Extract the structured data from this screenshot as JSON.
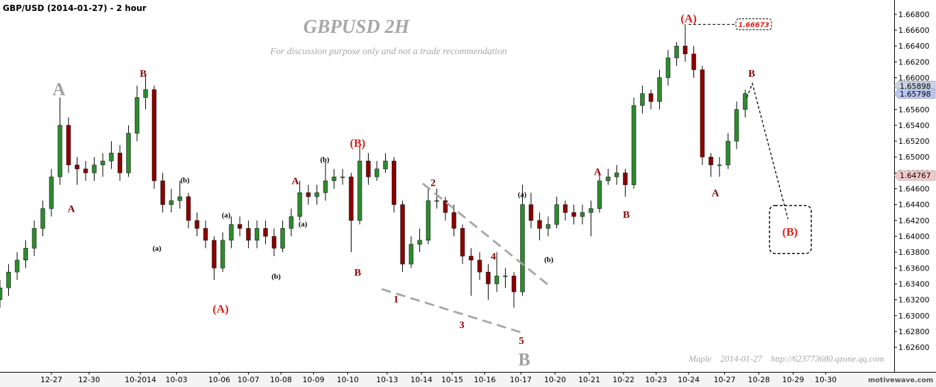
{
  "chart_data": {
    "type": "candlestick",
    "header": "GBP/USD (2014-01-27) - 2 hour",
    "title": "GBPUSD 2H",
    "subtitle": "For discussion purpose only and not a trade recommendation",
    "footer": "Maple    2014-01-27    http://623773680.qzone.qq.com",
    "watermark": "motivewave.com",
    "up_color": "#2e8b2e",
    "down_color": "#8b0000",
    "xlim": [
      -1.5,
      24.6
    ],
    "ylim": [
      1.6229,
      1.6698
    ],
    "xticks": [
      {
        "value": 0,
        "label": "12-27"
      },
      {
        "value": 1.1,
        "label": "12-30"
      },
      {
        "value": 2.6,
        "label": "10-2014"
      },
      {
        "value": 3.65,
        "label": "10-03"
      },
      {
        "value": 4.9,
        "label": "10-06"
      },
      {
        "value": 5.75,
        "label": "10-07"
      },
      {
        "value": 6.7,
        "label": "10-08"
      },
      {
        "value": 7.65,
        "label": "10-09"
      },
      {
        "value": 8.65,
        "label": "10-10"
      },
      {
        "value": 9.8,
        "label": "10-13"
      },
      {
        "value": 10.8,
        "label": "10-14"
      },
      {
        "value": 11.7,
        "label": "10-15"
      },
      {
        "value": 12.65,
        "label": "10-16"
      },
      {
        "value": 13.7,
        "label": "10-17"
      },
      {
        "value": 14.7,
        "label": "10-20"
      },
      {
        "value": 15.7,
        "label": "10-21"
      },
      {
        "value": 16.7,
        "label": "10-22"
      },
      {
        "value": 17.65,
        "label": "10-23"
      },
      {
        "value": 18.6,
        "label": "10-24"
      },
      {
        "value": 19.65,
        "label": "10-27"
      },
      {
        "value": 20.65,
        "label": "10-28"
      },
      {
        "value": 21.65,
        "label": "10-29"
      },
      {
        "value": 22.6,
        "label": "10-30"
      }
    ],
    "yticks": [
      {
        "value": 1.626,
        "label": "1.62600"
      },
      {
        "value": 1.628,
        "label": "1.62800"
      },
      {
        "value": 1.63,
        "label": "1.63000"
      },
      {
        "value": 1.632,
        "label": "1.63200"
      },
      {
        "value": 1.634,
        "label": "1.63400"
      },
      {
        "value": 1.636,
        "label": "1.63600"
      },
      {
        "value": 1.638,
        "label": "1.63800"
      },
      {
        "value": 1.64,
        "label": "1.64000"
      },
      {
        "value": 1.642,
        "label": "1.64200"
      },
      {
        "value": 1.644,
        "label": "1.64400"
      },
      {
        "value": 1.646,
        "label": "1.64600"
      },
      {
        "value": 1.648,
        "label": "1.64800"
      },
      {
        "value": 1.65,
        "label": "1.65000"
      },
      {
        "value": 1.652,
        "label": "1.65200"
      },
      {
        "value": 1.654,
        "label": "1.65400"
      },
      {
        "value": 1.656,
        "label": "1.65600"
      },
      {
        "value": 1.658,
        "label": "1.65800"
      },
      {
        "value": 1.66,
        "label": "1.66000"
      },
      {
        "value": 1.662,
        "label": "1.66200"
      },
      {
        "value": 1.664,
        "label": "1.66400"
      },
      {
        "value": 1.666,
        "label": "1.66600"
      },
      {
        "value": 1.668,
        "label": "1.66800"
      }
    ],
    "x": [
      -1.5,
      -1.25,
      -1,
      -0.75,
      -0.5,
      -0.25,
      0,
      0.25,
      0.5,
      0.75,
      1,
      1.25,
      1.5,
      1.75,
      2,
      2.25,
      2.5,
      2.75,
      3,
      3.25,
      3.5,
      3.75,
      4,
      4.25,
      4.5,
      4.75,
      5,
      5.25,
      5.5,
      5.75,
      6,
      6.25,
      6.5,
      6.75,
      7,
      7.25,
      7.5,
      7.75,
      8,
      8.25,
      8.5,
      8.75,
      9,
      9.25,
      9.5,
      9.75,
      10,
      10.25,
      10.5,
      10.75,
      11,
      11.25,
      11.5,
      11.75,
      12,
      12.25,
      12.5,
      12.75,
      13,
      13.25,
      13.5,
      13.75,
      14,
      14.25,
      14.5,
      14.75,
      15,
      15.25,
      15.5,
      15.75,
      16,
      16.25,
      16.5,
      16.75,
      17,
      17.25,
      17.5,
      17.75,
      18,
      18.25,
      18.5,
      18.75,
      19,
      19.25,
      19.5,
      19.75,
      20,
      20.25
    ],
    "open": [
      1.632,
      1.6335,
      1.6355,
      1.637,
      1.6385,
      1.641,
      1.6435,
      1.6475,
      1.654,
      1.649,
      1.6485,
      1.648,
      1.649,
      1.6495,
      1.6505,
      1.648,
      1.653,
      1.6575,
      1.6585,
      1.647,
      1.644,
      1.6445,
      1.645,
      1.642,
      1.641,
      1.6395,
      1.636,
      1.6395,
      1.6415,
      1.641,
      1.6395,
      1.641,
      1.64,
      1.6385,
      1.641,
      1.6425,
      1.6455,
      1.645,
      1.6455,
      1.647,
      1.6475,
      1.6475,
      1.642,
      1.6495,
      1.6475,
      1.6485,
      1.6495,
      1.644,
      1.6365,
      1.639,
      1.6395,
      1.6445,
      1.6445,
      1.643,
      1.641,
      1.6375,
      1.637,
      1.6355,
      1.634,
      1.635,
      1.635,
      1.633,
      1.644,
      1.642,
      1.641,
      1.6415,
      1.644,
      1.643,
      1.6425,
      1.643,
      1.6435,
      1.647,
      1.6475,
      1.648,
      1.6465,
      1.6565,
      1.658,
      1.657,
      1.66,
      1.6625,
      1.664,
      1.663,
      1.661,
      1.65,
      1.649,
      1.649,
      1.652,
      1.656
    ],
    "high": [
      1.6345,
      1.6365,
      1.638,
      1.6395,
      1.642,
      1.6445,
      1.6485,
      1.6575,
      1.655,
      1.65,
      1.6495,
      1.65,
      1.6505,
      1.652,
      1.6515,
      1.654,
      1.659,
      1.6602,
      1.659,
      1.648,
      1.646,
      1.647,
      1.6455,
      1.643,
      1.642,
      1.64,
      1.6405,
      1.6425,
      1.6425,
      1.642,
      1.642,
      1.642,
      1.641,
      1.642,
      1.6435,
      1.647,
      1.6465,
      1.6465,
      1.6495,
      1.6485,
      1.6485,
      1.648,
      1.6515,
      1.6505,
      1.6495,
      1.6505,
      1.65,
      1.6445,
      1.64,
      1.641,
      1.646,
      1.646,
      1.645,
      1.644,
      1.6415,
      1.6385,
      1.638,
      1.6365,
      1.638,
      1.636,
      1.6355,
      1.6465,
      1.6455,
      1.643,
      1.6425,
      1.645,
      1.6445,
      1.644,
      1.644,
      1.6445,
      1.648,
      1.6485,
      1.649,
      1.6485,
      1.6575,
      1.659,
      1.6585,
      1.661,
      1.6635,
      1.6645,
      1.66673,
      1.664,
      1.6615,
      1.6505,
      1.65,
      1.653,
      1.657,
      1.6585
    ],
    "low": [
      1.631,
      1.6325,
      1.6345,
      1.636,
      1.6375,
      1.64,
      1.6425,
      1.6465,
      1.648,
      1.6465,
      1.647,
      1.647,
      1.6475,
      1.6485,
      1.647,
      1.6475,
      1.652,
      1.656,
      1.646,
      1.643,
      1.643,
      1.6435,
      1.641,
      1.64,
      1.6385,
      1.6345,
      1.6355,
      1.6385,
      1.64,
      1.6385,
      1.6385,
      1.639,
      1.6375,
      1.638,
      1.64,
      1.642,
      1.644,
      1.644,
      1.6445,
      1.646,
      1.6465,
      1.638,
      1.6415,
      1.6465,
      1.647,
      1.648,
      1.643,
      1.6355,
      1.636,
      1.638,
      1.639,
      1.6435,
      1.642,
      1.64,
      1.6365,
      1.6325,
      1.6345,
      1.632,
      1.633,
      1.6335,
      1.631,
      1.6325,
      1.641,
      1.6395,
      1.64,
      1.641,
      1.642,
      1.6415,
      1.6415,
      1.64,
      1.643,
      1.6465,
      1.6465,
      1.645,
      1.646,
      1.6555,
      1.656,
      1.656,
      1.659,
      1.6615,
      1.662,
      1.66,
      1.649,
      1.6475,
      1.6475,
      1.6485,
      1.651,
      1.655
    ],
    "close": [
      1.6335,
      1.6355,
      1.637,
      1.6385,
      1.641,
      1.6435,
      1.6475,
      1.654,
      1.649,
      1.6485,
      1.648,
      1.649,
      1.6495,
      1.6505,
      1.648,
      1.653,
      1.6575,
      1.6585,
      1.647,
      1.644,
      1.6445,
      1.645,
      1.642,
      1.641,
      1.6395,
      1.636,
      1.6395,
      1.6415,
      1.641,
      1.6395,
      1.641,
      1.64,
      1.6385,
      1.641,
      1.6425,
      1.6455,
      1.645,
      1.6455,
      1.647,
      1.6475,
      1.6475,
      1.642,
      1.6495,
      1.6475,
      1.6485,
      1.6495,
      1.644,
      1.6365,
      1.639,
      1.6395,
      1.6445,
      1.6445,
      1.643,
      1.641,
      1.6375,
      1.637,
      1.6355,
      1.634,
      1.635,
      1.635,
      1.633,
      1.644,
      1.642,
      1.641,
      1.6415,
      1.644,
      1.643,
      1.6425,
      1.643,
      1.6435,
      1.647,
      1.6475,
      1.648,
      1.6465,
      1.6565,
      1.658,
      1.657,
      1.66,
      1.6625,
      1.664,
      1.663,
      1.661,
      1.65,
      1.649,
      1.649,
      1.652,
      1.656,
      1.658
    ],
    "price_markers": [
      {
        "value": 1.65898,
        "label": "1.65898",
        "color": "#c9d4e6"
      },
      {
        "value": 1.65798,
        "label": "1.65798",
        "color": "#b9c6f0"
      },
      {
        "value": 1.64767,
        "label": "1.64767",
        "color": "#f4c8c8"
      }
    ],
    "high_label": {
      "value": 1.66673,
      "label": "1.66673",
      "x": 20.5,
      "from_x": 18.6,
      "color": "#e0201c"
    },
    "annotations": [
      {
        "text": "A",
        "x": 0.22,
        "y": 1.6586,
        "color": "#a0a0a0"
      },
      {
        "text": "A",
        "x": 0.58,
        "y": 1.6435,
        "color": "#8b0000"
      },
      {
        "text": "B",
        "x": 2.68,
        "y": 1.6606,
        "color": "#8b0000"
      },
      {
        "text": "(a)",
        "x": 3.08,
        "y": 1.6385,
        "color": "#000000"
      },
      {
        "text": "(b)",
        "x": 3.9,
        "y": 1.6471,
        "color": "#000000"
      },
      {
        "text": "(A)",
        "x": 4.94,
        "y": 1.6309,
        "color": "#e0201c"
      },
      {
        "text": "(a)",
        "x": 5.1,
        "y": 1.6427,
        "color": "#000000"
      },
      {
        "text": "(b)",
        "x": 6.56,
        "y": 1.635,
        "color": "#000000"
      },
      {
        "text": "A",
        "x": 7.12,
        "y": 1.647,
        "color": "#8b0000"
      },
      {
        "text": "(a)",
        "x": 7.34,
        "y": 1.6416,
        "color": "#000000"
      },
      {
        "text": "(b)",
        "x": 7.98,
        "y": 1.6497,
        "color": "#000000"
      },
      {
        "text": "(B)",
        "x": 8.94,
        "y": 1.6518,
        "color": "#e0201c"
      },
      {
        "text": "B",
        "x": 8.94,
        "y": 1.6355,
        "color": "#8b0000"
      },
      {
        "text": "1",
        "x": 10.06,
        "y": 1.6321,
        "color": "#8b0000"
      },
      {
        "text": "2",
        "x": 11.14,
        "y": 1.6468,
        "color": "#8b0000"
      },
      {
        "text": "3",
        "x": 11.98,
        "y": 1.6289,
        "color": "#8b0000"
      },
      {
        "text": "4",
        "x": 12.9,
        "y": 1.6375,
        "color": "#8b0000"
      },
      {
        "text": "5",
        "x": 13.72,
        "y": 1.6269,
        "color": "#8b0000"
      },
      {
        "text": "B",
        "x": 13.8,
        "y": 1.6245,
        "color": "#a0a0a0"
      },
      {
        "text": "(a)",
        "x": 13.74,
        "y": 1.6453,
        "color": "#000000"
      },
      {
        "text": "(b)",
        "x": 14.52,
        "y": 1.6371,
        "color": "#000000"
      },
      {
        "text": "A",
        "x": 15.94,
        "y": 1.6482,
        "color": "#8b0000"
      },
      {
        "text": "B",
        "x": 16.78,
        "y": 1.6428,
        "color": "#8b0000"
      },
      {
        "text": "(A)",
        "x": 18.6,
        "y": 1.6675,
        "color": "#e0201c"
      },
      {
        "text": "B",
        "x": 20.44,
        "y": 1.6606,
        "color": "#8b0000"
      },
      {
        "text": "A",
        "x": 19.38,
        "y": 1.6455,
        "color": "#8b0000"
      },
      {
        "text": "(B)",
        "x": 21.56,
        "y": 1.6406,
        "color": "#e0201c"
      }
    ],
    "lines": [
      {
        "x": [
          10.84,
          14.6
        ],
        "y": [
          1.64666,
          1.63353
        ],
        "color": "#a8a8a8",
        "dash": "long"
      },
      {
        "x": [
          9.64,
          13.82
        ],
        "y": [
          1.63335,
          1.62774
        ],
        "color": "#a8a8a8",
        "dash": "long"
      },
      {
        "x": [
          20.3,
          20.46,
          21.5
        ],
        "y": [
          1.6575,
          1.65927,
          1.64217
        ],
        "color": "#000000",
        "dash": "short"
      }
    ]
  }
}
